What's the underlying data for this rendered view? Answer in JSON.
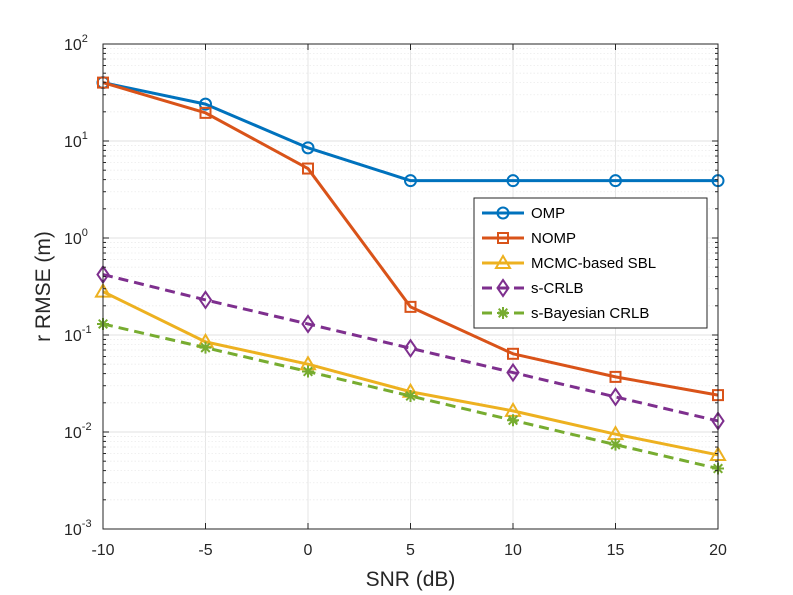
{
  "chart_data": {
    "type": "line",
    "xlabel": "SNR (dB)",
    "ylabel": "r RMSE (m)",
    "yscale": "log",
    "xlim": [
      -10,
      20
    ],
    "ylim": [
      0.001,
      100
    ],
    "grid": true,
    "x": [
      -10,
      -5,
      0,
      5,
      10,
      15,
      20
    ],
    "x_tick_labels": [
      "-10",
      "-5",
      "0",
      "5",
      "10",
      "15",
      "20"
    ],
    "y_ticks": [
      {
        "value": 0.001,
        "base": "10",
        "exp": "-3"
      },
      {
        "value": 0.01,
        "base": "10",
        "exp": "-2"
      },
      {
        "value": 0.1,
        "base": "10",
        "exp": "-1"
      },
      {
        "value": 1,
        "base": "10",
        "exp": "0"
      },
      {
        "value": 10,
        "base": "10",
        "exp": "1"
      },
      {
        "value": 100,
        "base": "10",
        "exp": "2"
      }
    ],
    "legend_position": "upper-right",
    "series": [
      {
        "name": "OMP",
        "color": "#0072BD",
        "marker": "circle",
        "dash": "solid",
        "values": [
          40,
          24,
          8.5,
          3.9,
          3.9,
          3.9,
          3.9
        ]
      },
      {
        "name": "NOMP",
        "color": "#D95319",
        "marker": "square",
        "dash": "solid",
        "values": [
          40,
          19.5,
          5.2,
          0.195,
          0.064,
          0.037,
          0.024
        ]
      },
      {
        "name": "MCMC-based SBL",
        "color": "#EDB120",
        "marker": "triangle",
        "dash": "solid",
        "values": [
          0.28,
          0.085,
          0.05,
          0.026,
          0.0165,
          0.0095,
          0.0058
        ]
      },
      {
        "name": "s-CRLB",
        "color": "#7E2F8E",
        "marker": "diamond",
        "dash": "dashed",
        "values": [
          0.42,
          0.23,
          0.13,
          0.073,
          0.041,
          0.023,
          0.013
        ]
      },
      {
        "name": "s-Bayesian CRLB",
        "color": "#77AC30",
        "marker": "asterisk",
        "dash": "dashed",
        "values": [
          0.13,
          0.074,
          0.042,
          0.0235,
          0.0132,
          0.0074,
          0.0042
        ]
      }
    ]
  }
}
